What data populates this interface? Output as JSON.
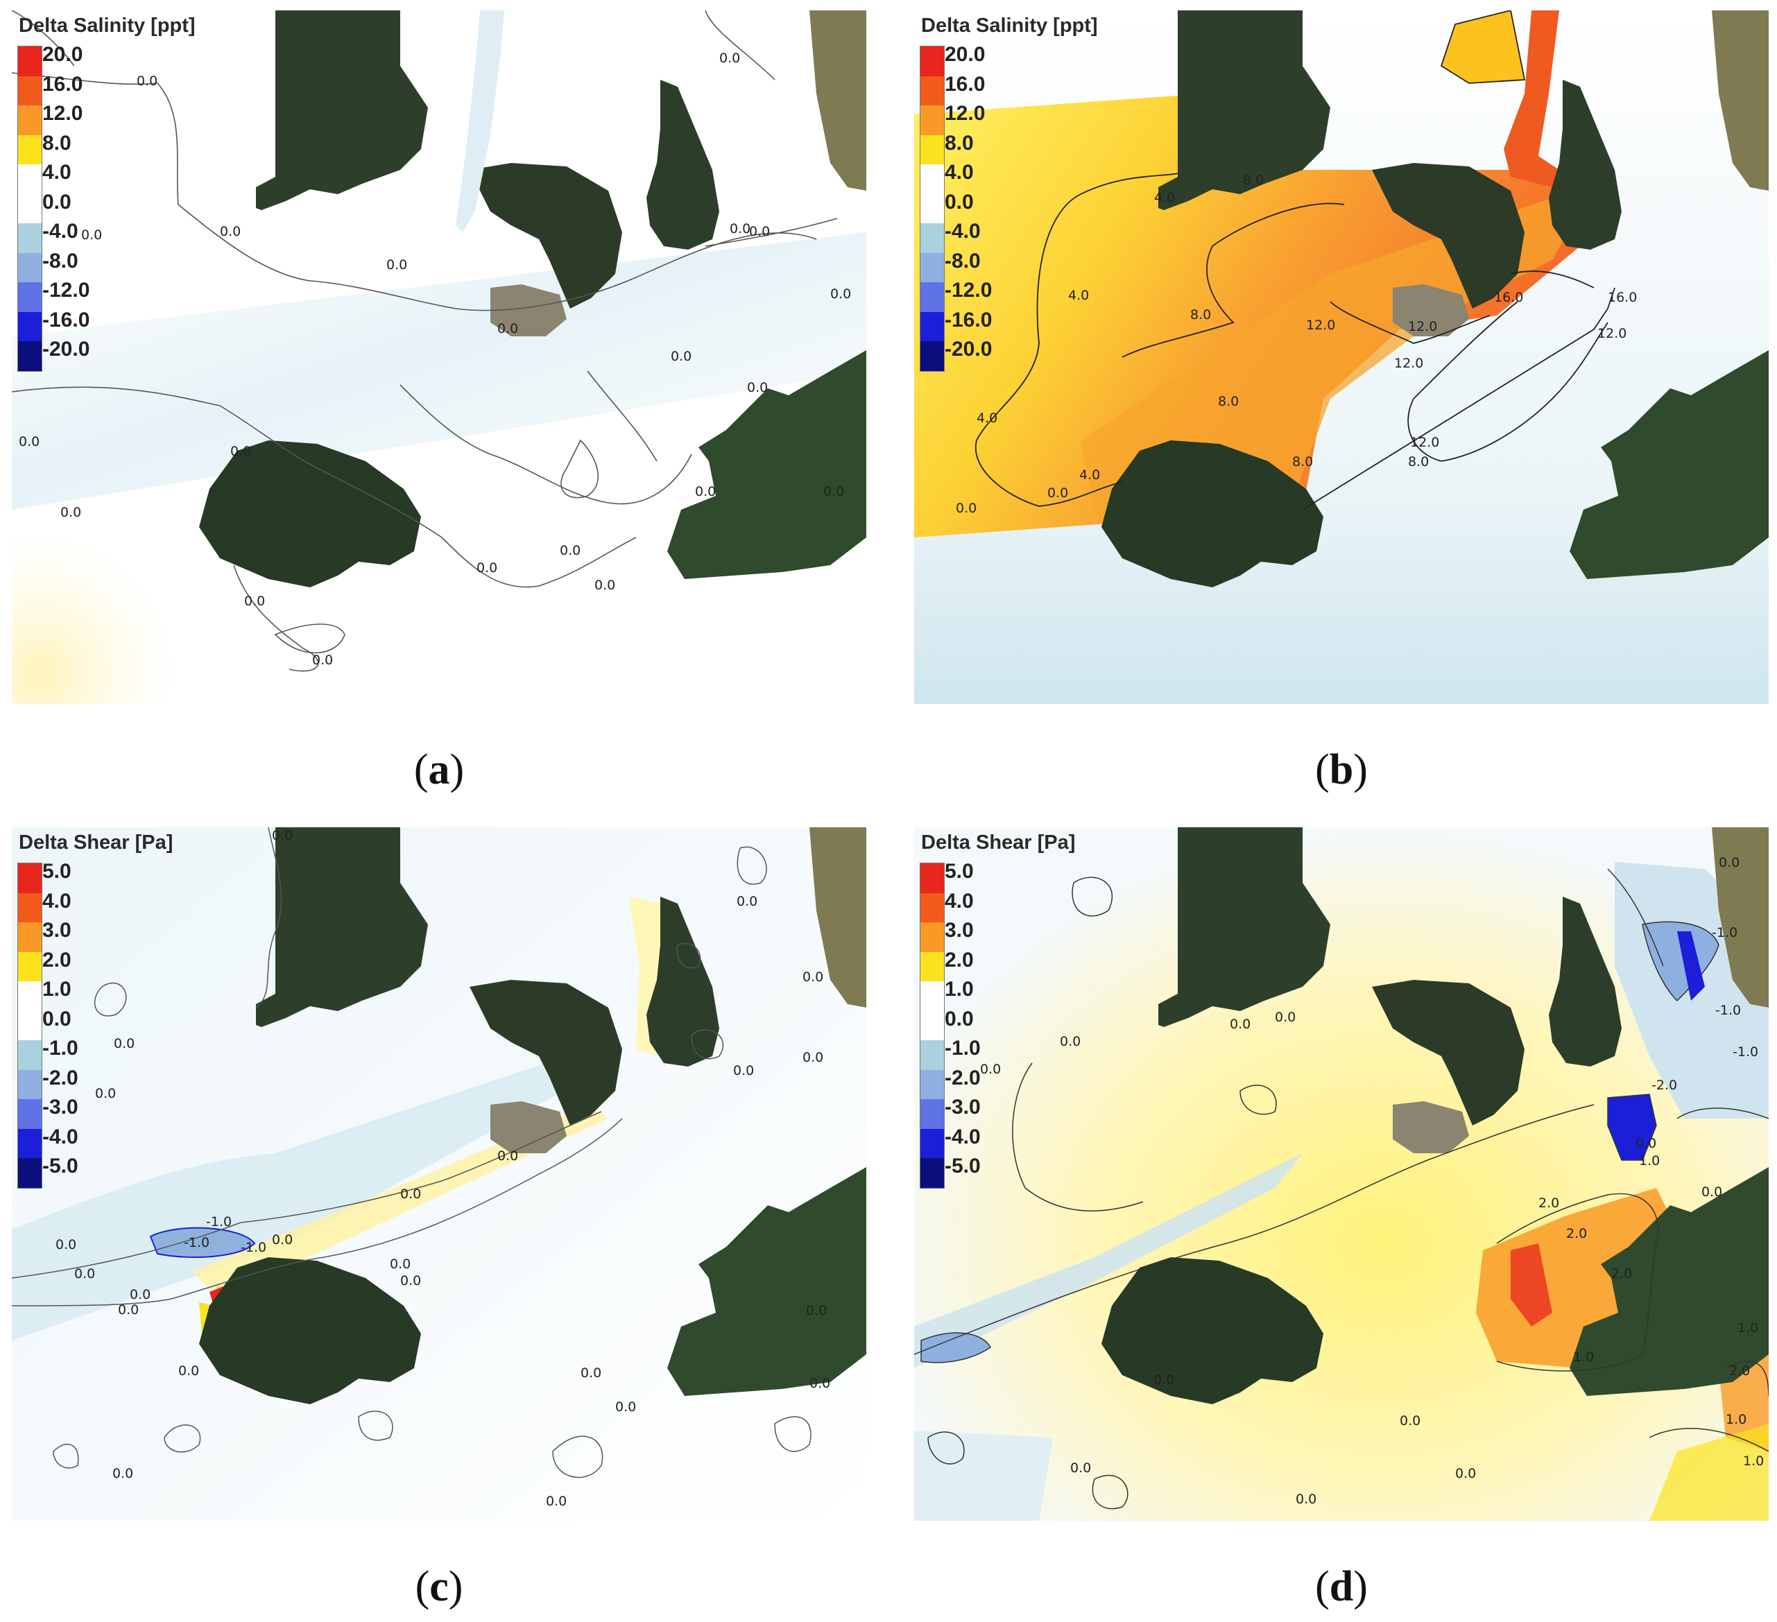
{
  "panels": [
    {
      "id": "a",
      "caption_letter": "a",
      "legend_title": "Delta Salinity [ppt]",
      "legend_values": [
        "20.0",
        "16.0",
        "12.0",
        "8.0",
        "4.0",
        "0.0",
        "-4.0",
        "-8.0",
        "-12.0",
        "-16.0",
        "-20.0"
      ],
      "contour_labels": [
        "0.0",
        "0.0",
        "0.0",
        "0.0",
        "0.0",
        "0.0",
        "0.0",
        "0.0",
        "0.0",
        "0.0",
        "0.0",
        "0.0",
        "0.0",
        "0.0",
        "0.0",
        "0.0",
        "0.0",
        "0.0",
        "0.0",
        "0.0",
        "0.0"
      ]
    },
    {
      "id": "b",
      "caption_letter": "b",
      "legend_title": "Delta Salinity [ppt]",
      "legend_values": [
        "20.0",
        "16.0",
        "12.0",
        "8.0",
        "4.0",
        "0.0",
        "-4.0",
        "-8.0",
        "-12.0",
        "-16.0",
        "-20.0"
      ],
      "contour_labels": [
        "4.0",
        "8.0",
        "4.0",
        "8.0",
        "12.0",
        "12.0",
        "16.0",
        "16.0",
        "12.0",
        "12.0",
        "8.0",
        "4.0",
        "8.0",
        "12.0",
        "8.0",
        "0.0",
        "4.0",
        "0.0"
      ]
    },
    {
      "id": "c",
      "caption_letter": "c",
      "legend_title": "Delta Shear [Pa]",
      "legend_values": [
        "5.0",
        "4.0",
        "3.0",
        "2.0",
        "1.0",
        "0.0",
        "-1.0",
        "-2.0",
        "-3.0",
        "-4.0",
        "-5.0"
      ],
      "contour_labels": [
        "0.0",
        "0.0",
        "0.0",
        "0.0",
        "0.0",
        "0.0",
        "0.0",
        "0.0",
        "-1.0",
        "-1.0",
        "-1.0",
        "0.0",
        "0.0",
        "0.0",
        "0.0",
        "0.0",
        "0.0",
        "0.0",
        "0.0",
        "0.0",
        "0.0",
        "0.0",
        "0.0",
        "0.0",
        "0.0",
        "0.0"
      ]
    },
    {
      "id": "d",
      "caption_letter": "d",
      "legend_title": "Delta Shear [Pa]",
      "legend_values": [
        "5.0",
        "4.0",
        "3.0",
        "2.0",
        "1.0",
        "0.0",
        "-1.0",
        "-2.0",
        "-3.0",
        "-4.0",
        "-5.0"
      ],
      "contour_labels": [
        "0.0",
        "0.0",
        "0.0",
        "0.0",
        "0.0",
        "-1.0",
        "-1.0",
        "-1.0",
        "-2.0",
        "0.0",
        "1.0",
        "2.0",
        "2.0",
        "2.0",
        "1.0",
        "0.0",
        "1.0",
        "2.0",
        "1.0",
        "1.0",
        "0.0",
        "0.0",
        "0.0",
        "0.0",
        "0.0"
      ]
    }
  ],
  "colorbars": {
    "salinity": [
      "#e8261c",
      "#f25a1c",
      "#f99a26",
      "#fbe21e",
      "#ffffff",
      "#ffffff",
      "#a9d2de",
      "#8eb0e0",
      "#5f72e6",
      "#1b1fd8",
      "#0b0f7c"
    ],
    "shear": [
      "#e8261c",
      "#f25a1c",
      "#f99a26",
      "#fbe21e",
      "#ffffff",
      "#ffffff",
      "#a9d2de",
      "#8eb0e0",
      "#5f72e6",
      "#1b1fd8",
      "#0b0f7c"
    ]
  },
  "land_color": "#2c3d2a"
}
